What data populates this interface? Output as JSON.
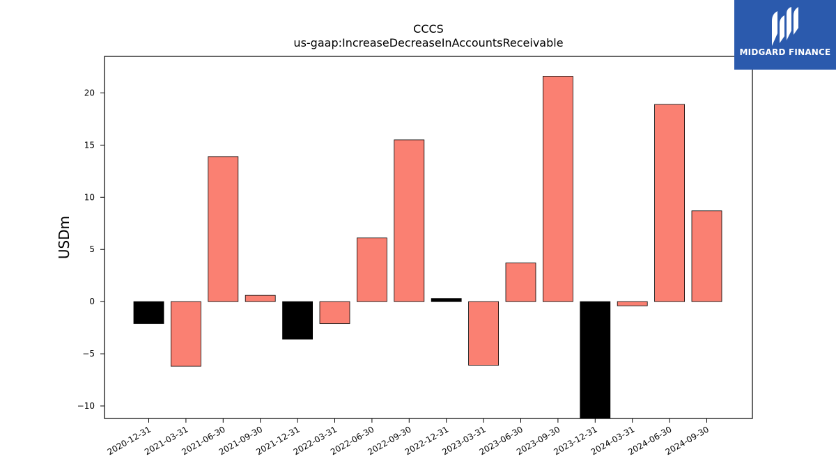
{
  "chart_data": {
    "type": "bar",
    "title": "CCCS",
    "subtitle": "us-gaap:IncreaseDecreaseInAccountsReceivable",
    "ylabel": "USDm",
    "xlabel": "",
    "ylim": [
      -11.2,
      23.5
    ],
    "yticks": [
      -10,
      -5,
      0,
      5,
      10,
      15,
      20
    ],
    "ytick_labels": [
      "−10",
      "−5",
      "0",
      "5",
      "10",
      "15",
      "20"
    ],
    "categories": [
      "2020-12-31",
      "2021-03-31",
      "2021-06-30",
      "2021-09-30",
      "2021-12-31",
      "2022-03-31",
      "2022-06-30",
      "2022-09-30",
      "2022-12-31",
      "2023-03-31",
      "2023-06-30",
      "2023-09-30",
      "2023-12-31",
      "2024-03-31",
      "2024-06-30",
      "2024-09-30"
    ],
    "values": [
      -2.1,
      -6.2,
      13.9,
      0.6,
      -3.6,
      -2.1,
      6.1,
      15.5,
      0.3,
      -6.1,
      3.7,
      21.6,
      -11.2,
      -0.4,
      18.9,
      8.7
    ],
    "colors": [
      "#000000",
      "#fa8072",
      "#fa8072",
      "#fa8072",
      "#000000",
      "#fa8072",
      "#fa8072",
      "#fa8072",
      "#000000",
      "#fa8072",
      "#fa8072",
      "#fa8072",
      "#000000",
      "#fa8072",
      "#fa8072",
      "#fa8072"
    ],
    "grid": false
  },
  "logo": {
    "text": "MIDGARD FINANCE",
    "background": "#2b5aad"
  }
}
